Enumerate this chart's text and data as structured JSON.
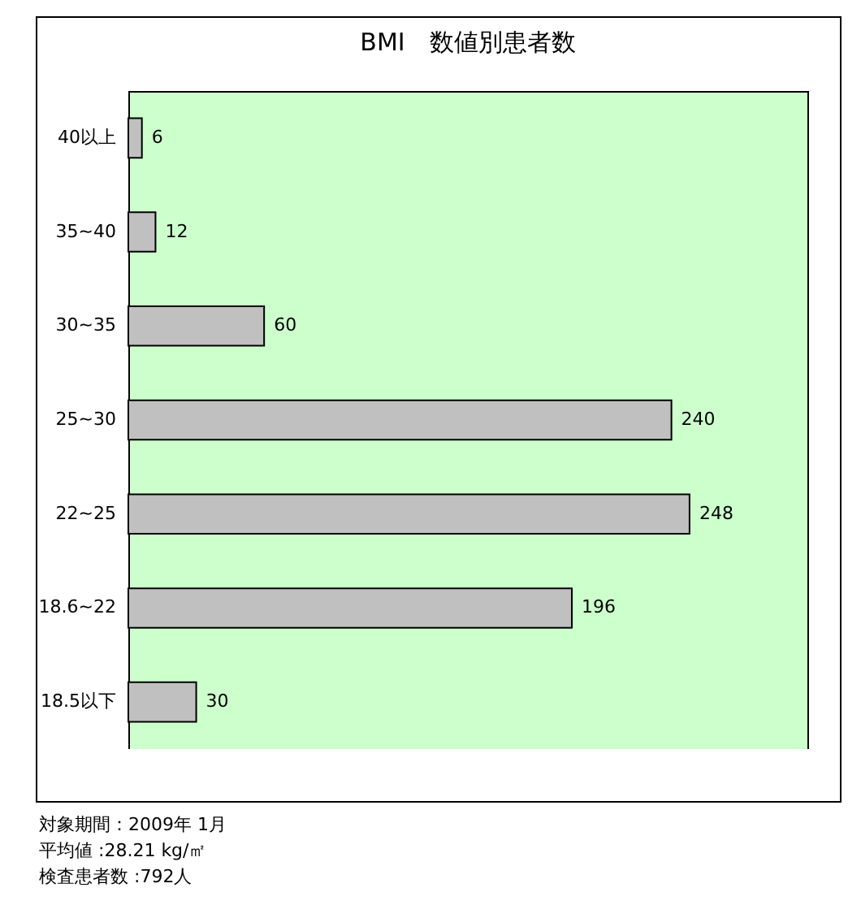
{
  "chart_data": {
    "type": "bar",
    "orientation": "horizontal",
    "title": "BMI　数値別患者数",
    "categories": [
      "40以上",
      "35~40",
      "30~35",
      "25~30",
      "22~25",
      "18.6~22",
      "18.5以下"
    ],
    "values": [
      6,
      12,
      60,
      240,
      248,
      196,
      30
    ],
    "color": "#c0c0c0",
    "data_labels": true,
    "grid": false,
    "annotations": [
      "対象期間：2009年 1月",
      "平均値 :28.21 kg/㎡",
      "検査患者数 :792人"
    ]
  }
}
